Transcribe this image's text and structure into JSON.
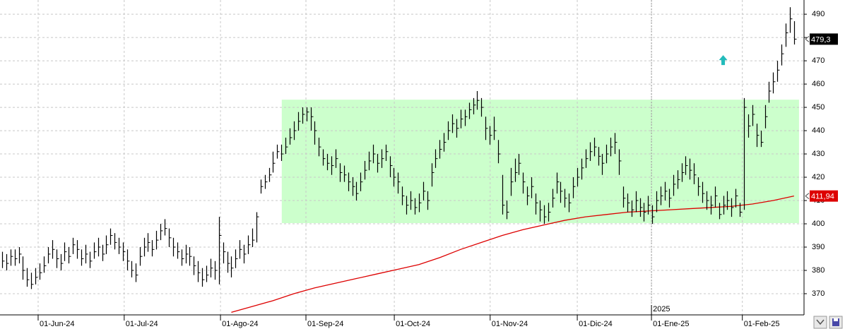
{
  "chart_data": {
    "type": "ohlc",
    "color": "#000000",
    "grid": true,
    "xlim": [
      -0.5,
      192.4
    ],
    "ylim": [
      360.9,
      496.1
    ],
    "yticks": [
      370,
      380,
      390,
      400,
      410,
      420,
      430,
      440,
      450,
      460,
      470,
      480,
      490
    ],
    "xticks": [
      {
        "value": 8.65,
        "label": "01-Jun-24"
      },
      {
        "value": 29.3,
        "label": "01-Jul-24"
      },
      {
        "value": 52.4,
        "label": "01-Ago-24"
      },
      {
        "value": 72.9,
        "label": "01-Sep-24"
      },
      {
        "value": 94.1,
        "label": "01-Oct-24"
      },
      {
        "value": 117.1,
        "label": "01-Nov-24"
      },
      {
        "value": 138,
        "label": "01-Dic-24"
      },
      {
        "value": 155.8,
        "label": "01-Ene-25"
      },
      {
        "value": 177.6,
        "label": "01-Feb-25"
      }
    ],
    "year_marker": {
      "value": 155.8,
      "label": "2025"
    },
    "high": [
      388,
      387,
      389,
      389,
      390,
      386,
      381,
      379,
      381,
      383,
      386,
      390,
      393,
      389,
      387,
      392,
      390,
      394,
      393,
      389,
      391,
      388,
      392,
      394,
      391,
      395,
      398,
      396,
      394,
      392,
      389,
      384,
      383,
      390,
      394,
      396,
      393,
      397,
      400,
      402,
      398,
      394,
      392,
      389,
      391,
      390,
      386,
      384,
      381,
      382,
      385,
      384,
      403,
      392,
      388,
      386,
      389,
      393,
      391,
      395,
      398,
      405,
      419,
      421,
      424,
      431,
      434,
      434,
      437,
      441,
      444,
      448,
      450,
      450,
      450,
      444,
      437,
      432,
      430,
      429,
      432,
      426,
      425,
      422,
      420,
      418,
      422,
      427,
      431,
      434,
      430,
      432,
      434,
      429,
      424,
      422,
      416,
      412,
      414,
      411,
      413,
      418,
      414,
      426,
      432,
      436,
      439,
      444,
      447,
      445,
      449,
      449,
      452,
      454,
      457,
      454,
      446,
      442,
      446,
      436,
      421,
      410,
      424,
      428,
      430,
      422,
      416,
      420,
      413,
      410,
      408,
      409,
      415,
      422,
      418,
      415,
      413,
      420,
      424,
      428,
      432,
      435,
      437,
      433,
      430,
      434,
      437,
      439,
      432,
      416,
      413,
      410,
      414,
      411,
      409,
      412,
      408,
      414,
      416,
      418,
      415,
      421,
      423,
      426,
      429,
      428,
      426,
      420,
      418,
      414,
      412,
      416,
      409,
      412,
      414,
      411,
      415,
      409,
      454,
      447,
      451,
      443,
      440,
      451,
      461,
      465,
      470,
      477,
      486,
      493,
      487
    ],
    "low": [
      381,
      380,
      382,
      382,
      383,
      376,
      373,
      372,
      374,
      376,
      379,
      383,
      385,
      381,
      380,
      384,
      383,
      387,
      385,
      382,
      383,
      381,
      385,
      386,
      384,
      387,
      391,
      389,
      387,
      384,
      380,
      377,
      375,
      382,
      386,
      388,
      386,
      389,
      393,
      395,
      390,
      386,
      385,
      382,
      383,
      382,
      378,
      375,
      373,
      375,
      377,
      376,
      374,
      383,
      379,
      377,
      381,
      385,
      383,
      387,
      390,
      392,
      413,
      415,
      418,
      422,
      428,
      427,
      430,
      434,
      436,
      440,
      443,
      444,
      440,
      434,
      429,
      425,
      423,
      421,
      424,
      418,
      418,
      414,
      412,
      410,
      414,
      419,
      423,
      426,
      422,
      424,
      427,
      420,
      416,
      413,
      408,
      404,
      406,
      404,
      405,
      410,
      406,
      416,
      424,
      428,
      431,
      436,
      439,
      437,
      441,
      442,
      445,
      447,
      449,
      446,
      436,
      434,
      436,
      426,
      404,
      402,
      412,
      418,
      421,
      413,
      408,
      411,
      404,
      401,
      400,
      401,
      407,
      413,
      409,
      407,
      405,
      411,
      416,
      419,
      424,
      427,
      429,
      425,
      421,
      426,
      429,
      430,
      421,
      407,
      405,
      403,
      405,
      403,
      401,
      404,
      400,
      405,
      408,
      410,
      407,
      412,
      415,
      418,
      421,
      419,
      417,
      412,
      409,
      406,
      404,
      407,
      402,
      404,
      406,
      403,
      407,
      403,
      406,
      437,
      442,
      433,
      433,
      441,
      452,
      456,
      461,
      468,
      476,
      482,
      477
    ],
    "close": [
      384,
      383,
      386,
      385,
      387,
      380,
      376,
      374,
      377,
      379,
      382,
      387,
      389,
      385,
      383,
      388,
      386,
      391,
      389,
      385,
      387,
      384,
      388,
      390,
      387,
      391,
      395,
      392,
      390,
      388,
      384,
      380,
      378,
      386,
      390,
      392,
      389,
      393,
      397,
      398,
      394,
      390,
      388,
      385,
      387,
      386,
      382,
      379,
      376,
      378,
      381,
      380,
      395,
      388,
      383,
      381,
      385,
      389,
      387,
      391,
      393,
      403,
      416,
      418,
      421,
      426,
      431,
      430,
      433,
      437,
      440,
      444,
      447,
      448,
      446,
      440,
      433,
      428,
      426,
      425,
      428,
      422,
      421,
      418,
      416,
      413,
      418,
      423,
      427,
      430,
      426,
      428,
      431,
      425,
      420,
      418,
      412,
      408,
      410,
      407,
      409,
      414,
      410,
      422,
      428,
      432,
      435,
      440,
      443,
      441,
      445,
      446,
      449,
      451,
      453,
      450,
      441,
      438,
      440,
      430,
      408,
      405,
      418,
      422,
      426,
      418,
      412,
      416,
      409,
      406,
      403,
      405,
      411,
      418,
      414,
      411,
      409,
      416,
      420,
      424,
      428,
      431,
      433,
      429,
      426,
      430,
      433,
      435,
      427,
      411,
      409,
      406,
      410,
      407,
      405,
      408,
      403,
      410,
      412,
      414,
      411,
      417,
      419,
      422,
      425,
      423,
      421,
      416,
      413,
      410,
      408,
      412,
      404,
      408,
      410,
      407,
      412,
      405,
      450,
      442,
      447,
      438,
      435,
      446,
      457,
      461,
      466,
      473,
      482,
      488,
      479.3
    ],
    "ma": {
      "color": "#dd0000",
      "x": [
        55,
        60,
        65,
        70,
        75,
        80,
        85,
        90,
        95,
        100,
        105,
        110,
        115,
        120,
        125,
        130,
        135,
        140,
        145,
        150,
        155,
        160,
        165,
        170,
        175,
        180,
        185,
        190
      ],
      "values": [
        362,
        364.5,
        367,
        370,
        372.5,
        374.5,
        376.5,
        378.5,
        380.5,
        382.5,
        385.5,
        389,
        392,
        395,
        397.5,
        399.5,
        401.5,
        403,
        404,
        405,
        405.5,
        406,
        406.5,
        407,
        407.5,
        408.5,
        410,
        411.94
      ]
    },
    "zone": {
      "color": "#ccffcc",
      "xlim": [
        67.1,
        191.2
      ],
      "ylim": [
        400.3,
        453.3
      ]
    },
    "arrow": {
      "color": "#22bbbb",
      "x": 173,
      "y": 470.3
    },
    "markers": [
      {
        "value": 479.3,
        "label": "479,3",
        "color": "#000000"
      },
      {
        "value": 411.94,
        "label": "411,94",
        "color": "#dd0000"
      }
    ]
  }
}
